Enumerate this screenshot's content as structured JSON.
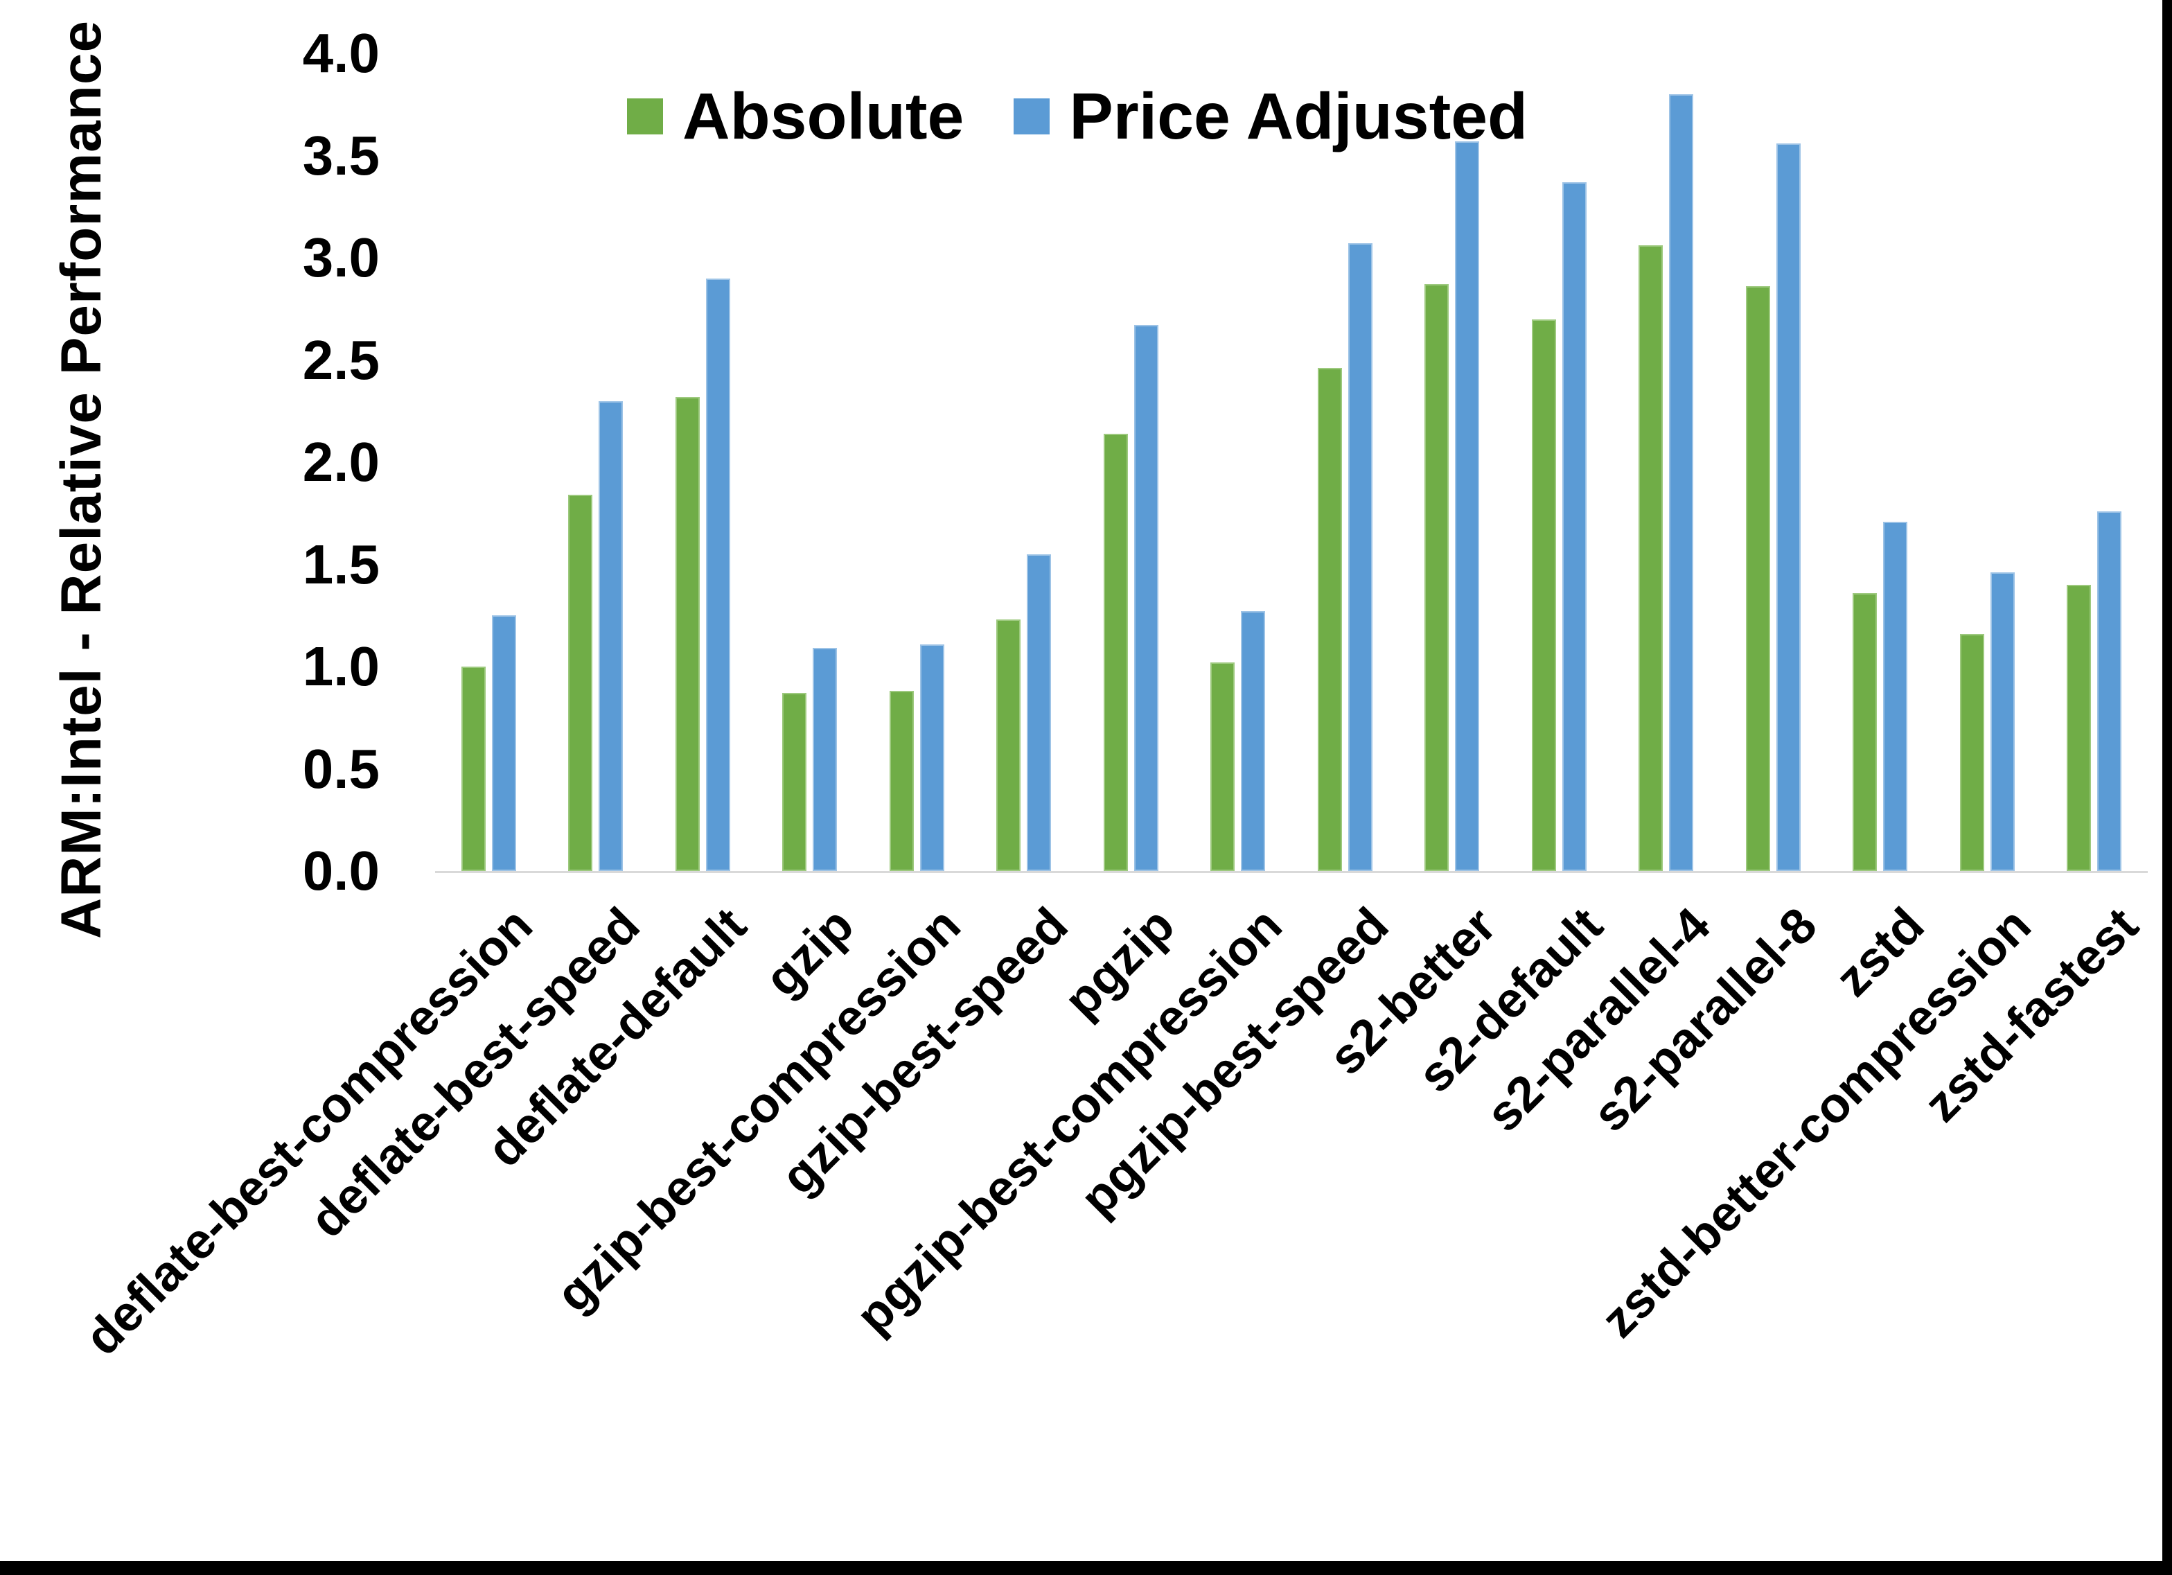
{
  "canvas": {
    "background": "#ffffff",
    "frame_color": "#000000",
    "axis_line_color": "#d9d9d9",
    "text_color": "#000000"
  },
  "chart_data": {
    "type": "bar",
    "title": "",
    "xlabel": "",
    "ylabel": "ARM:Intel - Relative Performance",
    "ylim": [
      0.0,
      4.0
    ],
    "ytick_step": 0.5,
    "ytick_labels": [
      "4.0",
      "3.5",
      "3.0",
      "2.5",
      "2.0",
      "1.5",
      "1.0",
      "0.5",
      "0.0"
    ],
    "grid": false,
    "legend_position": "top-center",
    "categories": [
      "deflate-best-compression",
      "deflate-best-speed",
      "deflate-default",
      "gzip",
      "gzip-best-compression",
      "gzip-best-speed",
      "pgzip",
      "pgzip-best-compression",
      "pgzip-best-speed",
      "s2-better",
      "s2-default",
      "s2-parallel-4",
      "s2-parallel-8",
      "zstd",
      "zstd-better-compression",
      "zstd-fastest"
    ],
    "series": [
      {
        "name": "Absolute",
        "color": "#70AD47",
        "values": [
          1.0,
          1.84,
          2.32,
          0.87,
          0.88,
          1.23,
          2.14,
          1.02,
          2.46,
          2.87,
          2.7,
          3.06,
          2.86,
          1.36,
          1.16,
          1.4
        ]
      },
      {
        "name": "Price Adjusted",
        "color": "#5B9BD5",
        "values": [
          1.25,
          2.3,
          2.9,
          1.09,
          1.11,
          1.55,
          2.67,
          1.27,
          3.07,
          3.57,
          3.37,
          3.8,
          3.56,
          1.71,
          1.46,
          1.76
        ]
      }
    ]
  }
}
